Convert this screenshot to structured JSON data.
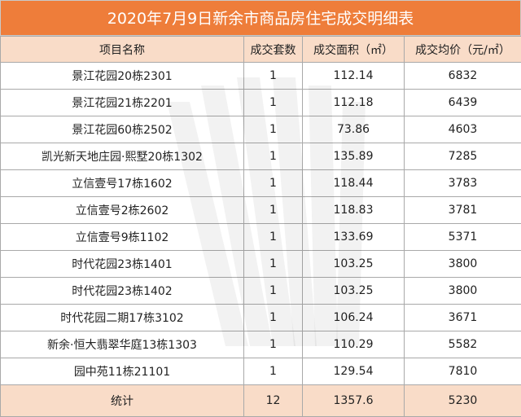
{
  "title": "2020年7月9日新余市商品房住宅成交明细表",
  "headers": [
    "项目名称",
    "成交套数",
    "成交面积（㎡）",
    "成交均价（元/㎡）"
  ],
  "rows": [
    {
      "name": "景江花园20栋2301",
      "units": "1",
      "area": "112.14",
      "price": "6832"
    },
    {
      "name": "景江花园21栋2201",
      "units": "1",
      "area": "112.18",
      "price": "6439"
    },
    {
      "name": "景江花园60栋2502",
      "units": "1",
      "area": "73.86",
      "price": "4603"
    },
    {
      "name": "凯光新天地庄园·熙墅20栋1302",
      "units": "1",
      "area": "135.89",
      "price": "7285"
    },
    {
      "name": "立信壹号17栋1602",
      "units": "1",
      "area": "118.44",
      "price": "3783"
    },
    {
      "name": "立信壹号2栋2602",
      "units": "1",
      "area": "118.83",
      "price": "3781"
    },
    {
      "name": "立信壹号9栋1102",
      "units": "1",
      "area": "133.69",
      "price": "5371"
    },
    {
      "name": "时代花园23栋1401",
      "units": "1",
      "area": "103.25",
      "price": "3800"
    },
    {
      "name": "时代花园23栋1402",
      "units": "1",
      "area": "103.25",
      "price": "3800"
    },
    {
      "name": "时代花园二期17栋3102",
      "units": "1",
      "area": "106.24",
      "price": "3671"
    },
    {
      "name": "新余·恒大翡翠华庭13栋1303",
      "units": "1",
      "area": "110.29",
      "price": "5582"
    },
    {
      "name": "园中苑11栋21101",
      "units": "1",
      "area": "129.54",
      "price": "7810"
    }
  ],
  "total": {
    "label": "统计",
    "units": "12",
    "area": "1357.6",
    "price": "5230"
  },
  "colors": {
    "title_bg": "#ee7d3a",
    "header_bg": "#f9dcc8",
    "grid": "#a9a9a9"
  },
  "watermark_icon": "striped-fan-logo"
}
